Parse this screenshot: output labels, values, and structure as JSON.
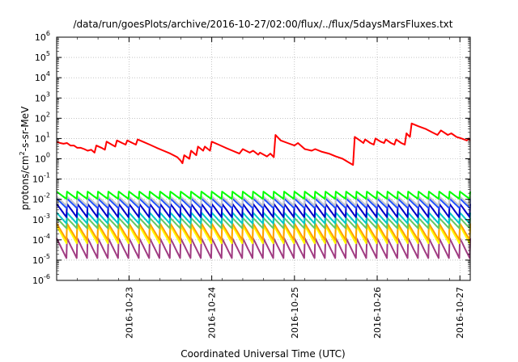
{
  "chart_data": {
    "type": "line",
    "title": "/data/run/goesPlots/archive/2016-10-27/02:00/flux/../flux/5daysMarsFluxes.txt",
    "xlabel": "Coordinated Universal Time (UTC)",
    "ylabel": {
      "pre": "protons/cm",
      "sup": "2",
      "post": "-s-sr-MeV"
    },
    "y_scale": "log",
    "ylim": [
      1e-06,
      1000000.0
    ],
    "xlim": [
      "2016-10-22 03:00",
      "2016-10-27 03:00"
    ],
    "grid": true,
    "legend": "none",
    "y_ticks": [
      {
        "base": "10",
        "exp": "-6",
        "value": 1e-06
      },
      {
        "base": "10",
        "exp": "-5",
        "value": 1e-05
      },
      {
        "base": "10",
        "exp": "-4",
        "value": 0.0001
      },
      {
        "base": "10",
        "exp": "-3",
        "value": 0.001
      },
      {
        "base": "10",
        "exp": "-2",
        "value": 0.01
      },
      {
        "base": "10",
        "exp": "-1",
        "value": 0.1
      },
      {
        "base": "10",
        "exp": "0",
        "value": 1
      },
      {
        "base": "10",
        "exp": "1",
        "value": 10
      },
      {
        "base": "10",
        "exp": "2",
        "value": 100
      },
      {
        "base": "10",
        "exp": "3",
        "value": 1000
      },
      {
        "base": "10",
        "exp": "4",
        "value": 10000
      },
      {
        "base": "10",
        "exp": "5",
        "value": 100000
      },
      {
        "base": "10",
        "exp": "6",
        "value": 1000000
      }
    ],
    "x_ticks": [
      "2016-10-23",
      "2016-10-24",
      "2016-10-25",
      "2016-10-26",
      "2016-10-27"
    ],
    "series": [
      {
        "color": "#ff0000",
        "values": [
          [
            "2016-10-22 03:00",
            7.0
          ],
          [
            "2016-10-22 04:00",
            6.0
          ],
          [
            "2016-10-22 05:00",
            5.5
          ],
          [
            "2016-10-22 06:00",
            6.0
          ],
          [
            "2016-10-22 07:00",
            4.5
          ],
          [
            "2016-10-22 08:00",
            4.5
          ],
          [
            "2016-10-22 09:00",
            3.5
          ],
          [
            "2016-10-22 10:00",
            3.5
          ],
          [
            "2016-10-22 11:00",
            3.0
          ],
          [
            "2016-10-22 12:00",
            2.5
          ],
          [
            "2016-10-22 13:00",
            2.8
          ],
          [
            "2016-10-22 14:00",
            2.0
          ],
          [
            "2016-10-22 14:30",
            4.5
          ],
          [
            "2016-10-22 16:00",
            3.5
          ],
          [
            "2016-10-22 17:00",
            2.8
          ],
          [
            "2016-10-22 17:30",
            7.0
          ],
          [
            "2016-10-22 19:00",
            5.0
          ],
          [
            "2016-10-22 20:00",
            4.0
          ],
          [
            "2016-10-22 20:30",
            8.0
          ],
          [
            "2016-10-22 22:00",
            6.0
          ],
          [
            "2016-10-22 23:00",
            5.0
          ],
          [
            "2016-10-22 23:30",
            8.0
          ],
          [
            "2016-10-23 01:00",
            6.0
          ],
          [
            "2016-10-23 02:00",
            5.0
          ],
          [
            "2016-10-23 02:30",
            9.0
          ],
          [
            "2016-10-23 04:00",
            7.0
          ],
          [
            "2016-10-23 06:00",
            5.0
          ],
          [
            "2016-10-23 08:00",
            3.5
          ],
          [
            "2016-10-23 10:00",
            2.5
          ],
          [
            "2016-10-23 12:00",
            1.8
          ],
          [
            "2016-10-23 14:00",
            1.2
          ],
          [
            "2016-10-23 15:00",
            0.8
          ],
          [
            "2016-10-23 15:30",
            0.6
          ],
          [
            "2016-10-23 16:00",
            1.5
          ],
          [
            "2016-10-23 17:30",
            1.0
          ],
          [
            "2016-10-23 18:00",
            2.5
          ],
          [
            "2016-10-23 19:30",
            1.5
          ],
          [
            "2016-10-23 20:00",
            4.0
          ],
          [
            "2016-10-23 21:30",
            2.5
          ],
          [
            "2016-10-23 22:00",
            4.0
          ],
          [
            "2016-10-23 23:30",
            2.5
          ],
          [
            "2016-10-24 00:00",
            7.0
          ],
          [
            "2016-10-24 02:00",
            5.0
          ],
          [
            "2016-10-24 04:00",
            3.5
          ],
          [
            "2016-10-24 06:00",
            2.5
          ],
          [
            "2016-10-24 08:00",
            1.8
          ],
          [
            "2016-10-24 09:00",
            3.0
          ],
          [
            "2016-10-24 11:00",
            2.0
          ],
          [
            "2016-10-24 12:00",
            2.5
          ],
          [
            "2016-10-24 13:30",
            1.6
          ],
          [
            "2016-10-24 14:00",
            2.0
          ],
          [
            "2016-10-24 16:00",
            1.3
          ],
          [
            "2016-10-24 17:00",
            1.8
          ],
          [
            "2016-10-24 18:00",
            1.2
          ],
          [
            "2016-10-24 18:30",
            15.0
          ],
          [
            "2016-10-24 20:00",
            8.0
          ],
          [
            "2016-10-24 22:00",
            6.0
          ],
          [
            "2016-10-25 00:00",
            4.5
          ],
          [
            "2016-10-25 01:00",
            6.0
          ],
          [
            "2016-10-25 03:00",
            3.0
          ],
          [
            "2016-10-25 05:00",
            2.5
          ],
          [
            "2016-10-25 06:00",
            3.0
          ],
          [
            "2016-10-25 08:00",
            2.2
          ],
          [
            "2016-10-25 10:00",
            1.8
          ],
          [
            "2016-10-25 12:00",
            1.3
          ],
          [
            "2016-10-25 14:00",
            1.0
          ],
          [
            "2016-10-25 15:30",
            0.7
          ],
          [
            "2016-10-25 17:00",
            0.5
          ],
          [
            "2016-10-25 17:30",
            12.0
          ],
          [
            "2016-10-25 19:00",
            8.0
          ],
          [
            "2016-10-25 20:00",
            6.0
          ],
          [
            "2016-10-25 20:30",
            9.0
          ],
          [
            "2016-10-25 22:00",
            6.0
          ],
          [
            "2016-10-25 23:00",
            5.0
          ],
          [
            "2016-10-25 23:30",
            10.0
          ],
          [
            "2016-10-26 01:00",
            7.0
          ],
          [
            "2016-10-26 02:00",
            6.0
          ],
          [
            "2016-10-26 02:30",
            9.0
          ],
          [
            "2016-10-26 04:00",
            6.0
          ],
          [
            "2016-10-26 05:00",
            5.0
          ],
          [
            "2016-10-26 05:30",
            9.0
          ],
          [
            "2016-10-26 07:00",
            6.0
          ],
          [
            "2016-10-26 08:00",
            5.0
          ],
          [
            "2016-10-26 08:30",
            18.0
          ],
          [
            "2016-10-26 09:30",
            12.0
          ],
          [
            "2016-10-26 10:00",
            55.0
          ],
          [
            "2016-10-26 12:00",
            40.0
          ],
          [
            "2016-10-26 14:00",
            30.0
          ],
          [
            "2016-10-26 16:00",
            20.0
          ],
          [
            "2016-10-26 17:30",
            15.0
          ],
          [
            "2016-10-26 18:30",
            25.0
          ],
          [
            "2016-10-26 20:30",
            15.0
          ],
          [
            "2016-10-26 21:30",
            18.0
          ],
          [
            "2016-10-26 23:00",
            12.0
          ],
          [
            "2016-10-27 00:30",
            10.0
          ],
          [
            "2016-10-27 02:00",
            8.0
          ],
          [
            "2016-10-27 02:30",
            10.0
          ],
          [
            "2016-10-27 03:00",
            8.0
          ]
        ]
      },
      {
        "color": "#00ff00",
        "sawtooth": {
          "high": 0.024,
          "low": 0.01,
          "period_hours": 3
        }
      },
      {
        "color": "#c8c8c8",
        "sawtooth": {
          "high": 0.014,
          "low": 0.0045,
          "period_hours": 3
        }
      },
      {
        "color": "#1e50ff",
        "sawtooth": {
          "high": 0.011,
          "low": 0.0035,
          "period_hours": 3
        }
      },
      {
        "color": "#0000c8",
        "sawtooth": {
          "high": 0.006,
          "low": 0.0012,
          "period_hours": 3
        }
      },
      {
        "color": "#00c8c8",
        "sawtooth": {
          "high": 0.0022,
          "low": 0.0006,
          "period_hours": 3
        }
      },
      {
        "color": "#64c864",
        "sawtooth": {
          "high": 0.0012,
          "low": 0.00035,
          "period_hours": 3
        }
      },
      {
        "color": "#ffa000",
        "sawtooth": {
          "high": 0.00065,
          "low": 9e-05,
          "period_hours": 3
        }
      },
      {
        "color": "#ffff00",
        "sawtooth": {
          "high": 0.0005,
          "low": 6e-05,
          "period_hours": 3
        }
      },
      {
        "color": "#a03c82",
        "sawtooth": {
          "high": 0.00012,
          "low": 1.1e-05,
          "period_hours": 3
        }
      }
    ]
  }
}
